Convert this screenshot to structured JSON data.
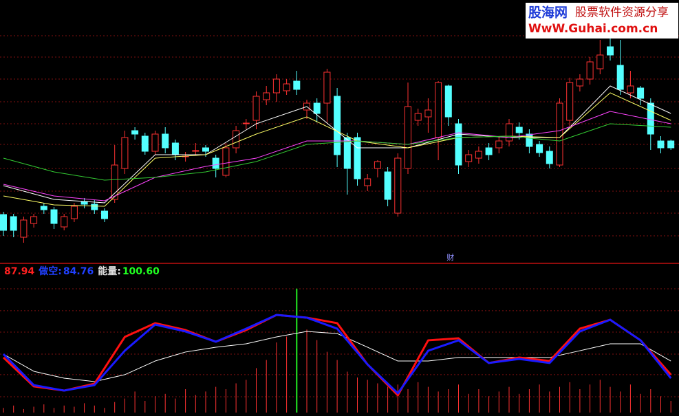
{
  "chart_data": [
    {
      "type": "candlestick",
      "open": [
        71,
        68,
        38,
        58,
        83,
        78,
        53,
        65,
        90,
        86,
        76,
        93,
        138,
        193,
        185,
        163,
        188,
        175,
        155,
        163,
        168,
        153,
        128,
        168,
        203,
        208,
        238,
        248,
        251,
        265,
        223,
        233,
        233,
        243,
        183,
        183,
        113,
        138,
        133,
        73,
        138,
        208,
        213,
        183,
        258,
        203,
        148,
        153,
        168,
        168,
        178,
        198,
        188,
        173,
        163,
        143,
        208,
        258,
        268,
        283,
        315,
        288,
        248,
        255,
        233,
        178,
        178
      ],
      "close": [
        48,
        48,
        63,
        68,
        78,
        58,
        68,
        83,
        86,
        78,
        65,
        143,
        183,
        188,
        163,
        188,
        168,
        158,
        156,
        164,
        163,
        138,
        168,
        193,
        204,
        243,
        248,
        268,
        261,
        253,
        233,
        218,
        278,
        158,
        138,
        123,
        123,
        148,
        93,
        153,
        228,
        218,
        223,
        263,
        213,
        143,
        158,
        163,
        158,
        178,
        203,
        190,
        170,
        161,
        145,
        233,
        263,
        268,
        293,
        303,
        303,
        253,
        258,
        240,
        188,
        168,
        168
      ],
      "high": [
        75,
        72,
        68,
        72,
        88,
        82,
        72,
        88,
        95,
        92,
        80,
        172,
        193,
        198,
        190,
        193,
        198,
        180,
        162,
        175,
        172,
        158,
        175,
        200,
        210,
        250,
        258,
        275,
        268,
        280,
        238,
        240,
        283,
        255,
        190,
        190,
        130,
        150,
        140,
        160,
        263,
        225,
        240,
        265,
        260,
        210,
        165,
        170,
        175,
        185,
        210,
        205,
        195,
        178,
        170,
        240,
        270,
        275,
        300,
        325,
        330,
        325,
        280,
        258,
        240,
        185,
        180
      ],
      "low": [
        40,
        38,
        30,
        52,
        72,
        50,
        48,
        60,
        80,
        72,
        60,
        88,
        130,
        180,
        158,
        158,
        160,
        150,
        148,
        158,
        155,
        125,
        125,
        160,
        195,
        195,
        230,
        235,
        245,
        245,
        210,
        205,
        205,
        140,
        100,
        113,
        105,
        125,
        83,
        68,
        130,
        200,
        190,
        150,
        200,
        130,
        140,
        145,
        150,
        160,
        170,
        180,
        160,
        155,
        138,
        140,
        200,
        250,
        260,
        275,
        295,
        245,
        240,
        230,
        165,
        160,
        165
      ],
      "up_color": "#ff3232",
      "down_color": "#54ffff",
      "ylim": [
        0,
        383
      ],
      "yticks": [
        331,
        300,
        268,
        235,
        203,
        173,
        138,
        105,
        73,
        40
      ],
      "grid": true,
      "ma_x": [
        0,
        5,
        10,
        15,
        20,
        25,
        30,
        35,
        40,
        45,
        50,
        55,
        60,
        66
      ],
      "series": [
        {
          "color": "#ffffff",
          "values": [
            113,
            93,
            88,
            158,
            158,
            203,
            228,
            168,
            168,
            188,
            183,
            183,
            258,
            218
          ]
        },
        {
          "color": "#ffff66",
          "values": [
            98,
            85,
            83,
            153,
            158,
            188,
            213,
            178,
            168,
            183,
            185,
            183,
            248,
            208
          ]
        },
        {
          "color": "#ff44ff",
          "values": [
            115,
            98,
            91,
            125,
            141,
            153,
            178,
            178,
            173,
            190,
            183,
            193,
            221,
            203
          ]
        },
        {
          "color": "#33cc33",
          "values": [
            153,
            133,
            121,
            125,
            133,
            148,
            173,
            178,
            173,
            183,
            185,
            178,
            203,
            198
          ]
        }
      ],
      "annotation": {
        "text": "财",
        "x": 44.2,
        "y": 8
      }
    },
    {
      "type": "line",
      "legend": [
        {
          "value": 87.94,
          "color": "#ff2020"
        },
        {
          "label": "做空:",
          "value": 84.76,
          "color": "#2040ff"
        },
        {
          "label": "能量:",
          "value": 100.6,
          "value_label": "100.60",
          "color": "#20ff20"
        }
      ],
      "ylim": [
        0,
        120
      ],
      "yticks": [
        105.9,
        87.1,
        68.8,
        50,
        32.4,
        13.5
      ],
      "grid": true,
      "x": [
        0,
        3,
        6,
        9,
        12,
        15,
        18,
        21,
        24,
        27,
        30,
        33,
        36,
        39,
        42,
        45,
        48,
        51,
        54,
        57,
        60,
        63,
        66
      ],
      "series": [
        {
          "color": "#ffffff",
          "width": 1,
          "values": [
            50,
            35.3,
            29.4,
            26.5,
            32.4,
            44.1,
            51.8,
            55.9,
            58.8,
            64.7,
            69.4,
            67.6,
            55.9,
            44.1,
            44.1,
            47.1,
            47.1,
            47.1,
            47.1,
            52.9,
            58.8,
            58.8,
            44.1
          ]
        },
        {
          "color": "#ff1010",
          "width": 3,
          "values": [
            47.1,
            22.4,
            18.8,
            24.7,
            64.7,
            76.5,
            70.6,
            60.6,
            70.6,
            83.5,
            81.2,
            76.5,
            41.2,
            14.7,
            61.8,
            63.5,
            42.4,
            47.1,
            44.1,
            71.8,
            79.4,
            61.8,
            32.4
          ]
        },
        {
          "color": "#1a1aff",
          "width": 3,
          "values": [
            50,
            23.5,
            18.8,
            23.5,
            52.9,
            75.3,
            69.4,
            60.6,
            71.8,
            83.5,
            81.2,
            71.8,
            41.2,
            16.5,
            52.9,
            61.8,
            42.4,
            45.9,
            42.4,
            69.4,
            79.4,
            61.8,
            29.4
          ]
        }
      ],
      "bars": [
        4,
        6,
        3,
        5,
        7,
        4,
        6,
        5,
        8,
        6,
        4,
        9,
        12,
        18,
        10,
        14,
        16,
        12,
        20,
        15,
        18,
        22,
        20,
        25,
        28,
        38,
        45,
        60,
        65,
        106,
        71,
        62,
        52,
        45,
        35,
        30,
        28,
        25,
        22,
        24,
        20,
        26,
        22,
        18,
        20,
        24,
        16,
        20,
        14,
        18,
        22,
        16,
        20,
        24,
        18,
        22,
        26,
        20,
        24,
        28,
        22,
        18,
        24,
        16,
        20,
        14,
        10
      ],
      "bar_color": "#ff3232",
      "highlight_index": 29,
      "highlight_color": "#22ee22"
    }
  ],
  "watermark": {
    "brand": "股海网",
    "slogan": "股票软件资源分享",
    "url": "WwW.Guhai.com.cn"
  }
}
